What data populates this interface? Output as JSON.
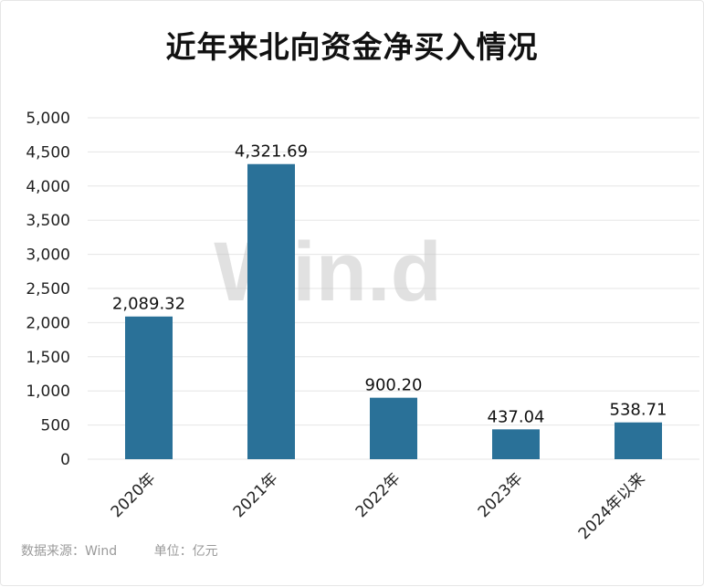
{
  "title": "近年来北向资金净买入情况",
  "footer": {
    "source": "数据来源：Wind",
    "unit": "单位：亿元"
  },
  "watermark": "Win.d",
  "colors": {
    "bar": "#2a7198"
  },
  "chart_data": {
    "type": "bar",
    "title": "近年来北向资金净买入情况",
    "categories": [
      "2020年",
      "2021年",
      "2022年",
      "2023年",
      "2024年以来"
    ],
    "values": [
      2089.32,
      4321.69,
      900.2,
      437.04,
      538.71
    ],
    "value_labels": [
      "2,089.32",
      "4,321.69",
      "900.20",
      "437.04",
      "538.71"
    ],
    "ylim": [
      0,
      5000
    ],
    "yticks": [
      0,
      500,
      1000,
      1500,
      2000,
      2500,
      3000,
      3500,
      4000,
      4500,
      5000
    ],
    "ytick_labels": [
      "0",
      "500",
      "1,000",
      "1,500",
      "2,000",
      "2,500",
      "3,000",
      "3,500",
      "4,000",
      "4,500",
      "5,000"
    ],
    "grid": true,
    "xlabel": "",
    "ylabel": ""
  }
}
